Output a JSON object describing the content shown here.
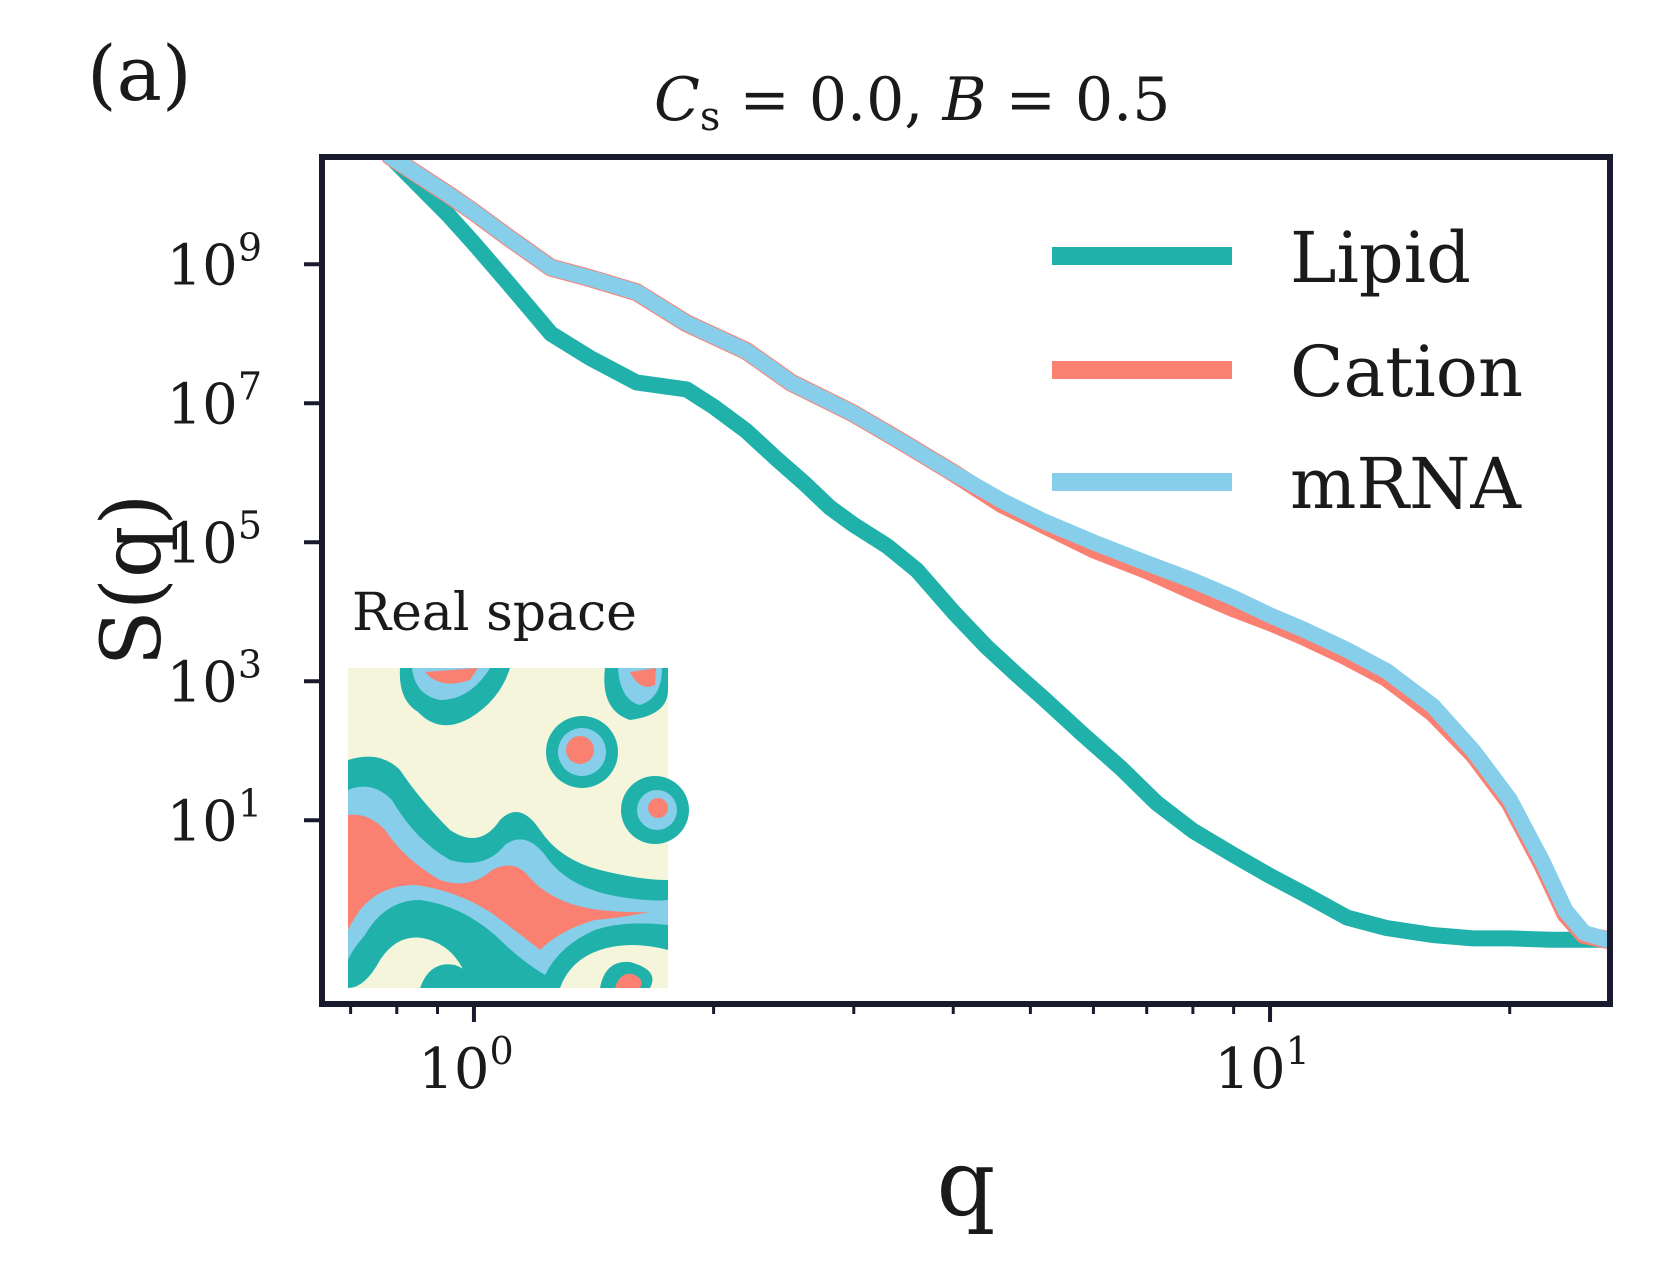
{
  "panel_label": "(a)",
  "inset": {
    "label": "Real space",
    "colors": {
      "background": "#f5f5dc",
      "lipid": "#20b2aa",
      "cation": "#fa8072",
      "mrna": "#87ceeb"
    }
  },
  "chart_data": {
    "type": "line",
    "title": {
      "c": "C",
      "sub": "s",
      "rest": " = 0.0, ",
      "b": "B",
      "rest2": " = 0.5"
    },
    "xlabel": "q",
    "ylabel": "S(q)",
    "xscale": "log",
    "yscale": "log",
    "xlim": [
      0.65,
      26.5
    ],
    "ylim_log10": [
      -1.6,
      10.5
    ],
    "x_ticks": [
      {
        "value": 1,
        "base": "10",
        "exp": "0"
      },
      {
        "value": 10,
        "base": "10",
        "exp": "1"
      }
    ],
    "y_ticks": [
      {
        "value": 1,
        "base": "10",
        "exp": "1"
      },
      {
        "value": 3,
        "base": "10",
        "exp": "3"
      },
      {
        "value": 5,
        "base": "10",
        "exp": "5"
      },
      {
        "value": 7,
        "base": "10",
        "exp": "7"
      },
      {
        "value": 9,
        "base": "10",
        "exp": "9"
      }
    ],
    "legend": {
      "position": "top-right"
    },
    "series": [
      {
        "name": "Lipid",
        "color": "#20b2aa",
        "points": [
          [
            0.785,
            10.55
          ],
          [
            0.93,
            9.7
          ],
          [
            1.0,
            9.3
          ],
          [
            1.1,
            8.75
          ],
          [
            1.25,
            8.0
          ],
          [
            1.4,
            7.65
          ],
          [
            1.6,
            7.3
          ],
          [
            1.85,
            7.2
          ],
          [
            2.0,
            6.95
          ],
          [
            2.2,
            6.6
          ],
          [
            2.4,
            6.2
          ],
          [
            2.6,
            5.85
          ],
          [
            2.8,
            5.5
          ],
          [
            3.0,
            5.25
          ],
          [
            3.3,
            4.95
          ],
          [
            3.6,
            4.6
          ],
          [
            4.0,
            4.0
          ],
          [
            4.4,
            3.5
          ],
          [
            4.8,
            3.1
          ],
          [
            5.2,
            2.75
          ],
          [
            5.8,
            2.25
          ],
          [
            6.5,
            1.75
          ],
          [
            7.2,
            1.25
          ],
          [
            8.0,
            0.85
          ],
          [
            9.0,
            0.5
          ],
          [
            10.0,
            0.2
          ],
          [
            11.0,
            -0.05
          ],
          [
            12.5,
            -0.4
          ],
          [
            14.0,
            -0.55
          ],
          [
            16.0,
            -0.65
          ],
          [
            18.0,
            -0.7
          ],
          [
            20.0,
            -0.7
          ],
          [
            22.5,
            -0.72
          ],
          [
            26.5,
            -0.72
          ]
        ]
      },
      {
        "name": "Cation",
        "color": "#fa8072",
        "points": [
          [
            0.785,
            10.55
          ],
          [
            0.93,
            10.0
          ],
          [
            1.0,
            9.75
          ],
          [
            1.1,
            9.4
          ],
          [
            1.25,
            8.95
          ],
          [
            1.4,
            8.8
          ],
          [
            1.6,
            8.6
          ],
          [
            1.85,
            8.15
          ],
          [
            2.2,
            7.75
          ],
          [
            2.5,
            7.3
          ],
          [
            3.0,
            6.85
          ],
          [
            3.5,
            6.4
          ],
          [
            4.0,
            6.0
          ],
          [
            4.6,
            5.55
          ],
          [
            5.2,
            5.25
          ],
          [
            6.0,
            4.9
          ],
          [
            7.0,
            4.6
          ],
          [
            8.0,
            4.3
          ],
          [
            9.0,
            4.05
          ],
          [
            10.0,
            3.85
          ],
          [
            11.0,
            3.65
          ],
          [
            12.5,
            3.35
          ],
          [
            14.0,
            3.05
          ],
          [
            16.0,
            2.55
          ],
          [
            18.0,
            1.95
          ],
          [
            20.0,
            1.25
          ],
          [
            22.0,
            0.35
          ],
          [
            23.5,
            -0.35
          ],
          [
            24.8,
            -0.65
          ],
          [
            26.5,
            -0.72
          ]
        ]
      },
      {
        "name": "mRNA",
        "color": "#87ceeb",
        "points": [
          [
            0.785,
            10.55
          ],
          [
            0.93,
            10.0
          ],
          [
            1.0,
            9.75
          ],
          [
            1.1,
            9.4
          ],
          [
            1.25,
            8.95
          ],
          [
            1.4,
            8.8
          ],
          [
            1.6,
            8.6
          ],
          [
            1.85,
            8.15
          ],
          [
            2.2,
            7.75
          ],
          [
            2.5,
            7.3
          ],
          [
            3.0,
            6.85
          ],
          [
            3.5,
            6.4
          ],
          [
            4.0,
            6.0
          ],
          [
            4.6,
            5.6
          ],
          [
            5.2,
            5.3
          ],
          [
            6.0,
            5.0
          ],
          [
            7.0,
            4.7
          ],
          [
            8.0,
            4.45
          ],
          [
            9.0,
            4.2
          ],
          [
            10.0,
            3.95
          ],
          [
            11.0,
            3.75
          ],
          [
            12.5,
            3.45
          ],
          [
            14.0,
            3.15
          ],
          [
            16.0,
            2.65
          ],
          [
            18.0,
            2.0
          ],
          [
            20.0,
            1.3
          ],
          [
            22.0,
            0.4
          ],
          [
            23.5,
            -0.3
          ],
          [
            24.8,
            -0.62
          ],
          [
            26.5,
            -0.72
          ]
        ]
      }
    ]
  }
}
